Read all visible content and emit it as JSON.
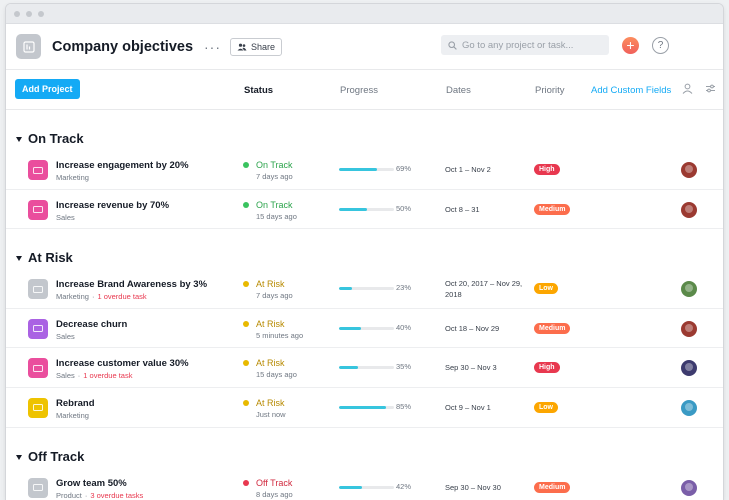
{
  "header": {
    "title": "Company objectives",
    "more": "···",
    "share_label": "Share",
    "search_placeholder": "Go to any project or task...",
    "plus_label": "+",
    "help_label": "?"
  },
  "toolbar": {
    "add_project_label": "Add Project",
    "columns": {
      "status": "Status",
      "progress": "Progress",
      "dates": "Dates",
      "priority": "Priority",
      "custom_fields": "Add Custom Fields"
    }
  },
  "colors": {
    "accent": "#14aaf5",
    "on_track": "#3ac35f",
    "at_risk": "#e8b900",
    "off_track": "#e8384f",
    "progress": "#37c5de",
    "priority_high": "#e8384f",
    "priority_medium": "#fc6d4c",
    "priority_low": "#fca600"
  },
  "sections": [
    {
      "title": "On Track",
      "rows": [
        {
          "name": "Increase engagement by 20%",
          "team": "Marketing",
          "overdue": "",
          "icon_color": "#ea4e9d",
          "status": "On Track",
          "status_color": "#3ac35f",
          "status_text_color": "#2ca44c",
          "updated": "7 days ago",
          "progress": 69,
          "progress_label": "69%",
          "dates": "Oct 1 – Nov 2",
          "priority": "High",
          "priority_color": "#e8384f",
          "avatar_color": "#9b3a31"
        },
        {
          "name": "Increase revenue by 70%",
          "team": "Sales",
          "overdue": "",
          "icon_color": "#ea4e9d",
          "status": "On Track",
          "status_color": "#3ac35f",
          "status_text_color": "#2ca44c",
          "updated": "15 days ago",
          "progress": 50,
          "progress_label": "50%",
          "dates": "Oct 8 – 31",
          "priority": "Medium",
          "priority_color": "#fc6d4c",
          "avatar_color": "#9b3a31"
        }
      ]
    },
    {
      "title": "At Risk",
      "rows": [
        {
          "name": "Increase Brand Awareness by 3%",
          "team": "Marketing",
          "overdue": "1 overdue task",
          "icon_color": "#c3c7cd",
          "status": "At Risk",
          "status_color": "#e8b900",
          "status_text_color": "#b78a00",
          "updated": "7 days ago",
          "progress": 23,
          "progress_label": "23%",
          "dates": "Oct 20, 2017 – Nov 29, 2018",
          "priority": "Low",
          "priority_color": "#fca600",
          "avatar_color": "#5b8a4a"
        },
        {
          "name": "Decrease churn",
          "team": "Sales",
          "overdue": "",
          "icon_color": "#aa62e3",
          "status": "At Risk",
          "status_color": "#e8b900",
          "status_text_color": "#b78a00",
          "updated": "5 minutes ago",
          "progress": 40,
          "progress_label": "40%",
          "dates": "Oct 18 – Nov 29",
          "priority": "Medium",
          "priority_color": "#fc6d4c",
          "avatar_color": "#9b3a31"
        },
        {
          "name": "Increase customer value 30%",
          "team": "Sales",
          "overdue": "1 overdue task",
          "icon_color": "#ea4e9d",
          "status": "At Risk",
          "status_color": "#e8b900",
          "status_text_color": "#b78a00",
          "updated": "15 days ago",
          "progress": 35,
          "progress_label": "35%",
          "dates": "Sep 30 – Nov 3",
          "priority": "High",
          "priority_color": "#e8384f",
          "avatar_color": "#3d3b6e"
        },
        {
          "name": "Rebrand",
          "team": "Marketing",
          "overdue": "",
          "icon_color": "#eec300",
          "status": "At Risk",
          "status_color": "#e8b900",
          "status_text_color": "#b78a00",
          "updated": "Just now",
          "progress": 85,
          "progress_label": "85%",
          "dates": "Oct 9 – Nov 1",
          "priority": "Low",
          "priority_color": "#fca600",
          "avatar_color": "#3a9ac4"
        }
      ]
    },
    {
      "title": "Off Track",
      "rows": [
        {
          "name": "Grow team 50%",
          "team": "Product",
          "overdue": "3 overdue tasks",
          "icon_color": "#c3c7cd",
          "status": "Off Track",
          "status_color": "#e8384f",
          "status_text_color": "#d12a3f",
          "updated": "8 days ago",
          "progress": 42,
          "progress_label": "42%",
          "dates": "Sep 30 – Nov 30",
          "priority": "Medium",
          "priority_color": "#fc6d4c",
          "avatar_color": "#7a5ea8"
        }
      ]
    }
  ]
}
